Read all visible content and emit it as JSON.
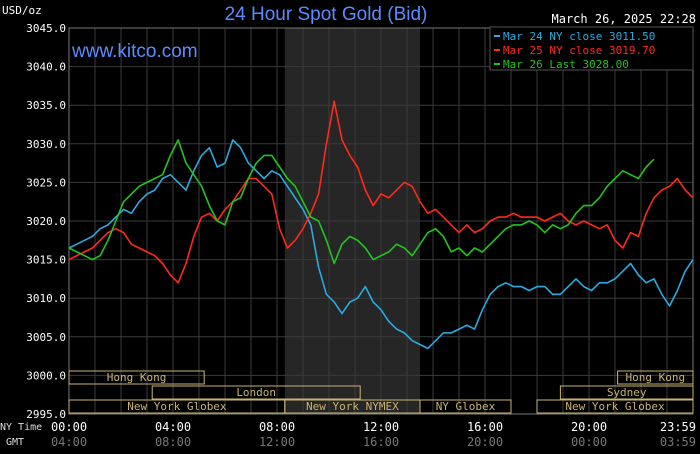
{
  "header": {
    "unit_label": "USD/oz",
    "title": "24 Hour Spot Gold (Bid)",
    "timestamp": "March 26, 2025 22:28",
    "watermark": "www.kitco.com"
  },
  "colors": {
    "background": "#000000",
    "grid": "#3a3a3a",
    "axis_text": "#ffffff",
    "title": "#5b8cff",
    "market_box": "#c8b472",
    "shade": "#262626"
  },
  "chart_data": {
    "type": "line",
    "title": "24 Hour Spot Gold (Bid)",
    "ylabel": "USD/oz",
    "ylim": [
      2995.0,
      3045.0
    ],
    "yticks": [
      2995.0,
      3000.0,
      3005.0,
      3010.0,
      3015.0,
      3020.0,
      3025.0,
      3030.0,
      3035.0,
      3040.0,
      3045.0
    ],
    "ytick_labels": [
      "2995.0",
      "3000.0",
      "3005.0",
      "3010.0",
      "3015.0",
      "3020.0",
      "3025.0",
      "3030.0",
      "3035.0",
      "3040.0",
      "3045.0"
    ],
    "xlim": [
      0,
      24
    ],
    "xticks": [
      0,
      4,
      8,
      12,
      16,
      20,
      24
    ],
    "ny_time_labels": [
      "00:00",
      "04:00",
      "08:00",
      "12:00",
      "16:00",
      "20:00",
      "23:59"
    ],
    "gmt_labels": [
      "04:00",
      "08:00",
      "12:00",
      "16:00",
      "20:00",
      "00:00",
      "03:59"
    ],
    "row_labels": {
      "ny": "NY Time",
      "gmt": "GMT"
    },
    "shaded_region": [
      8.3,
      13.5
    ],
    "grid": true,
    "legend_position": "top-right",
    "series": [
      {
        "name": "Mar 24 NY close 3011.50",
        "color": "#29abe2",
        "x": [
          0,
          0.3,
          0.6,
          0.9,
          1.2,
          1.5,
          1.8,
          2.1,
          2.4,
          2.7,
          3.0,
          3.3,
          3.6,
          3.9,
          4.2,
          4.5,
          4.8,
          5.1,
          5.4,
          5.7,
          6.0,
          6.3,
          6.6,
          6.9,
          7.2,
          7.5,
          7.8,
          8.1,
          8.4,
          8.7,
          9.0,
          9.3,
          9.6,
          9.9,
          10.2,
          10.5,
          10.8,
          11.1,
          11.4,
          11.7,
          12.0,
          12.3,
          12.6,
          12.9,
          13.2,
          13.5,
          13.8,
          14.1,
          14.4,
          14.7,
          15.0,
          15.3,
          15.6,
          15.9,
          16.2,
          16.5,
          16.8,
          17.1,
          17.4,
          17.7,
          18.0,
          18.3,
          18.6,
          18.9,
          19.2,
          19.5,
          19.8,
          20.1,
          20.4,
          20.7,
          21.0,
          21.3,
          21.6,
          21.9,
          22.2,
          22.5,
          22.8,
          23.1,
          23.4,
          23.7,
          24.0
        ],
        "values": [
          3016.5,
          3017.0,
          3017.5,
          3018.0,
          3019.0,
          3019.5,
          3020.5,
          3021.5,
          3021.0,
          3022.5,
          3023.5,
          3024.0,
          3025.5,
          3026.0,
          3025.0,
          3024.0,
          3026.5,
          3028.5,
          3029.5,
          3027.0,
          3027.5,
          3030.5,
          3029.5,
          3027.5,
          3026.5,
          3025.5,
          3026.5,
          3026.0,
          3024.5,
          3023.0,
          3021.5,
          3019.5,
          3014.0,
          3010.5,
          3009.5,
          3008.0,
          3009.5,
          3010.0,
          3011.5,
          3009.5,
          3008.5,
          3007.0,
          3006.0,
          3005.5,
          3004.5,
          3004.0,
          3003.5,
          3004.5,
          3005.5,
          3005.5,
          3006.0,
          3006.5,
          3006.0,
          3008.5,
          3010.5,
          3011.5,
          3012.0,
          3011.5,
          3011.5,
          3011.0,
          3011.5,
          3011.5,
          3010.5,
          3010.5,
          3011.5,
          3012.5,
          3011.5,
          3011.0,
          3012.0,
          3012.0,
          3012.5,
          3013.5,
          3014.5,
          3013.0,
          3012.0,
          3012.5,
          3010.5,
          3009.0,
          3011.0,
          3013.5,
          3015.0
        ]
      },
      {
        "name": "Mar 25 NY close 3019.70",
        "color": "#ff2a1a",
        "x": [
          0,
          0.3,
          0.6,
          0.9,
          1.2,
          1.5,
          1.8,
          2.1,
          2.4,
          2.7,
          3.0,
          3.3,
          3.6,
          3.9,
          4.2,
          4.5,
          4.8,
          5.1,
          5.4,
          5.7,
          6.0,
          6.3,
          6.6,
          6.9,
          7.2,
          7.5,
          7.8,
          8.1,
          8.4,
          8.7,
          9.0,
          9.3,
          9.6,
          9.9,
          10.2,
          10.5,
          10.8,
          11.1,
          11.4,
          11.7,
          12.0,
          12.3,
          12.6,
          12.9,
          13.2,
          13.5,
          13.8,
          14.1,
          14.4,
          14.7,
          15.0,
          15.3,
          15.6,
          15.9,
          16.2,
          16.5,
          16.8,
          17.1,
          17.4,
          17.7,
          18.0,
          18.3,
          18.6,
          18.9,
          19.2,
          19.5,
          19.8,
          20.1,
          20.4,
          20.7,
          21.0,
          21.3,
          21.6,
          21.9,
          22.2,
          22.5,
          22.8,
          23.1,
          23.4,
          23.7,
          24.0
        ],
        "values": [
          3015.0,
          3015.5,
          3016.0,
          3016.5,
          3017.5,
          3018.5,
          3019.0,
          3018.5,
          3017.0,
          3016.5,
          3016.0,
          3015.5,
          3014.5,
          3013.0,
          3012.0,
          3014.5,
          3018.0,
          3020.5,
          3021.0,
          3020.0,
          3021.5,
          3022.5,
          3024.0,
          3025.5,
          3025.5,
          3024.5,
          3023.5,
          3019.0,
          3016.5,
          3017.5,
          3019.0,
          3021.0,
          3023.5,
          3030.0,
          3035.5,
          3030.5,
          3028.5,
          3027.0,
          3024.0,
          3022.0,
          3023.5,
          3023.0,
          3024.0,
          3025.0,
          3024.5,
          3022.5,
          3021.0,
          3021.5,
          3020.5,
          3019.5,
          3018.5,
          3019.5,
          3018.5,
          3019.0,
          3020.0,
          3020.5,
          3020.5,
          3021.0,
          3020.5,
          3020.5,
          3020.5,
          3020.0,
          3020.5,
          3021.0,
          3020.0,
          3019.5,
          3020.0,
          3019.5,
          3019.0,
          3019.5,
          3017.5,
          3016.5,
          3018.5,
          3018.0,
          3021.0,
          3023.0,
          3024.0,
          3024.5,
          3025.5,
          3024.0,
          3023.0
        ]
      },
      {
        "name": "Mar 26 Last 3028.00",
        "color": "#22c41e",
        "x": [
          0,
          0.3,
          0.6,
          0.9,
          1.2,
          1.5,
          1.8,
          2.1,
          2.4,
          2.7,
          3.0,
          3.3,
          3.6,
          3.9,
          4.2,
          4.5,
          4.8,
          5.1,
          5.4,
          5.7,
          6.0,
          6.3,
          6.6,
          6.9,
          7.2,
          7.5,
          7.8,
          8.1,
          8.4,
          8.7,
          9.0,
          9.3,
          9.6,
          9.9,
          10.2,
          10.5,
          10.8,
          11.1,
          11.4,
          11.7,
          12.0,
          12.3,
          12.6,
          12.9,
          13.2,
          13.5,
          13.8,
          14.1,
          14.4,
          14.7,
          15.0,
          15.3,
          15.6,
          15.9,
          16.2,
          16.5,
          16.8,
          17.1,
          17.4,
          17.7,
          18.0,
          18.3,
          18.6,
          18.9,
          19.2,
          19.5,
          19.8,
          20.1,
          20.4,
          20.7,
          21.0,
          21.3,
          21.6,
          21.9,
          22.2,
          22.5
        ],
        "values": [
          3016.5,
          3016.0,
          3015.5,
          3015.0,
          3015.5,
          3017.5,
          3020.0,
          3022.5,
          3023.5,
          3024.5,
          3025.0,
          3025.5,
          3026.0,
          3028.5,
          3030.5,
          3027.5,
          3026.0,
          3024.5,
          3022.0,
          3020.0,
          3019.5,
          3022.5,
          3023.0,
          3025.5,
          3027.5,
          3028.5,
          3028.5,
          3027.0,
          3025.5,
          3024.5,
          3022.5,
          3020.5,
          3020.0,
          3017.5,
          3014.5,
          3017.0,
          3018.0,
          3017.5,
          3016.5,
          3015.0,
          3015.5,
          3016.0,
          3017.0,
          3016.5,
          3015.5,
          3017.0,
          3018.5,
          3019.0,
          3018.0,
          3016.0,
          3016.5,
          3015.5,
          3016.5,
          3016.0,
          3017.0,
          3018.0,
          3019.0,
          3019.5,
          3019.5,
          3020.0,
          3019.5,
          3018.5,
          3019.5,
          3019.0,
          3019.5,
          3021.0,
          3022.0,
          3022.0,
          3023.0,
          3024.5,
          3025.5,
          3026.5,
          3026.0,
          3025.5,
          3027.0,
          3028.0
        ]
      }
    ]
  },
  "markets": [
    {
      "label": "Hong Kong",
      "row": 0,
      "start": 0.0,
      "end": 5.2
    },
    {
      "label": "London",
      "row": 1,
      "start": 3.2,
      "end": 11.2
    },
    {
      "label": "New York Globex",
      "row": 2,
      "start": 0.0,
      "end": 8.3
    },
    {
      "label": "New York NYMEX",
      "row": 2,
      "start": 8.3,
      "end": 13.5
    },
    {
      "label": "NY Globex",
      "row": 2,
      "start": 13.5,
      "end": 17.0
    },
    {
      "label": "Hong Kong",
      "row": 0,
      "start": 21.1,
      "end": 24.0
    },
    {
      "label": "Sydney",
      "row": 1,
      "start": 18.9,
      "end": 24.0
    },
    {
      "label": "New York Globex",
      "row": 2,
      "start": 18.0,
      "end": 24.0
    }
  ]
}
